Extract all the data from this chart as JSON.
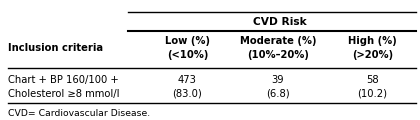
{
  "title_main": "CVD Risk",
  "col_headers_line1": [
    "Low (%)",
    "Moderate (%)",
    "High (%)"
  ],
  "col_headers_line2": [
    "(<10%)",
    "(10%–20%)",
    "(>20%)"
  ],
  "row_label_line1": "Chart + BP 160/100 +",
  "row_label_line2": "Cholesterol ≥8 mmol/l",
  "data_line1": [
    "473",
    "39",
    "58"
  ],
  "data_line2": [
    "(83.0)",
    "(6.8)",
    "(10.2)"
  ],
  "footnote": "CVD= Cardiovascular Disease.",
  "inclusion_criteria_label": "Inclusion criteria",
  "bg_color": "#ffffff",
  "text_color": "#000000",
  "font_size": 7.2,
  "header_font_size": 7.2
}
